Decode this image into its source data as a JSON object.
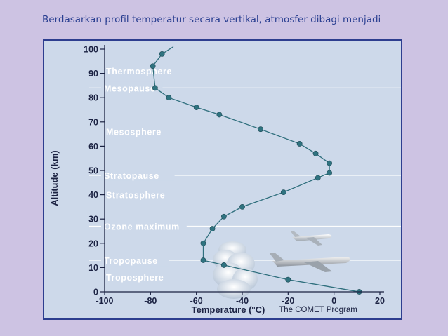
{
  "caption": "Berdasarkan profil temperatur secara vertikal, atmosfer dibagi menjadi",
  "chart_data": {
    "type": "line",
    "xlabel": "Temperature (°C)",
    "ylabel": "Altitude (km)",
    "xlim": [
      -100,
      20
    ],
    "ylim": [
      0,
      100
    ],
    "x_ticks": [
      "-100",
      "-80",
      "-60",
      "-40",
      "-20",
      "0",
      "20"
    ],
    "y_ticks": [
      "0",
      "10",
      "20",
      "30",
      "40",
      "50",
      "60",
      "70",
      "80",
      "90",
      "100"
    ],
    "series": [
      {
        "points": [
          {
            "x": 11,
            "y": 0
          },
          {
            "x": -20,
            "y": 5
          },
          {
            "x": -48,
            "y": 11
          },
          {
            "x": -57,
            "y": 13
          },
          {
            "x": -57,
            "y": 20
          },
          {
            "x": -53,
            "y": 26
          },
          {
            "x": -48,
            "y": 31
          },
          {
            "x": -40,
            "y": 35
          },
          {
            "x": -22,
            "y": 41
          },
          {
            "x": -7,
            "y": 47
          },
          {
            "x": -2,
            "y": 49
          },
          {
            "x": -2,
            "y": 53
          },
          {
            "x": -8,
            "y": 57
          },
          {
            "x": -15,
            "y": 61
          },
          {
            "x": -32,
            "y": 67
          },
          {
            "x": -50,
            "y": 73
          },
          {
            "x": -60,
            "y": 76
          },
          {
            "x": -72,
            "y": 80
          },
          {
            "x": -78,
            "y": 84
          },
          {
            "x": -79,
            "y": 93
          },
          {
            "x": -75,
            "y": 98
          },
          {
            "x": -70,
            "y": 101
          }
        ]
      }
    ],
    "layers": [
      {
        "label": "Thermosphere",
        "y": 91
      },
      {
        "label": "Mesopause",
        "y": 84,
        "boundary": true
      },
      {
        "label": "Mesosphere",
        "y": 66
      },
      {
        "label": "Stratopause",
        "y": 48,
        "boundary": true
      },
      {
        "label": "Stratosphere",
        "y": 40
      },
      {
        "label": "Ozone maximum",
        "y": 27,
        "boundary": true
      },
      {
        "label": "Tropopause",
        "y": 13,
        "boundary": true
      },
      {
        "label": "Troposphere",
        "y": 6
      }
    ],
    "credit": "The COMET Program",
    "colors": {
      "background": "#cdd9ea",
      "line": "#2f6f7d",
      "marker": "#2f7380",
      "boundary": "#ffffff"
    }
  }
}
